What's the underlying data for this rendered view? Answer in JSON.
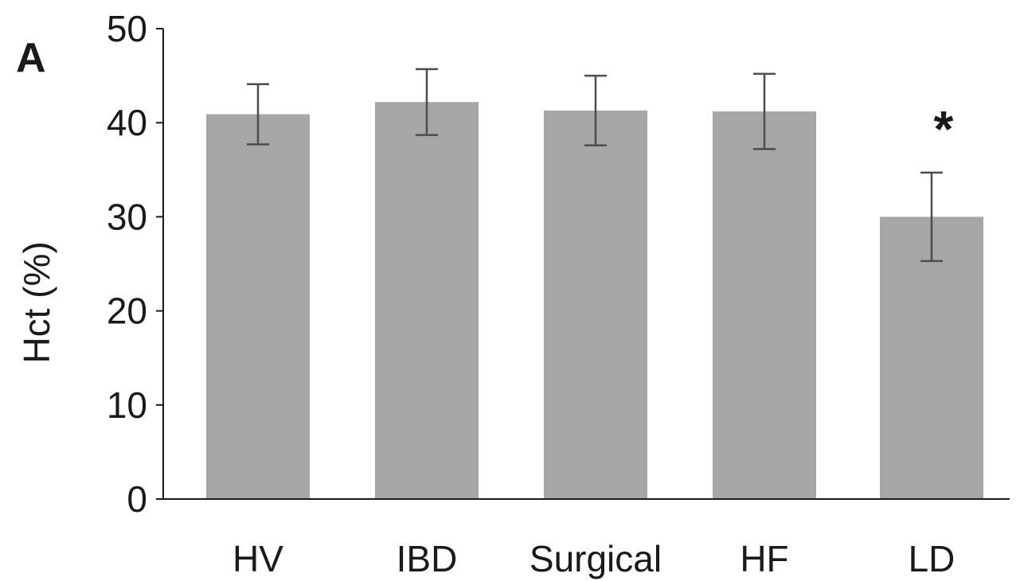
{
  "panel_label": "A",
  "chart_data": {
    "type": "bar",
    "categories": [
      "HV",
      "IBD",
      "Surgical",
      "HF",
      "LD"
    ],
    "values": [
      40.9,
      42.2,
      41.3,
      41.2,
      30.0
    ],
    "error": [
      3.2,
      3.5,
      3.7,
      4.0,
      4.7
    ],
    "annotations": [
      "",
      "",
      "",
      "",
      "*"
    ],
    "ylabel": "Hct (%)",
    "xlabel": "",
    "ylim": [
      0,
      50
    ],
    "yticks": [
      0,
      10,
      20,
      30,
      40,
      50
    ],
    "bar_color": "#a6a6a6",
    "error_color": "#4d4d4d",
    "axis_color": "#1a1a1a",
    "grid": false,
    "legend": false
  }
}
